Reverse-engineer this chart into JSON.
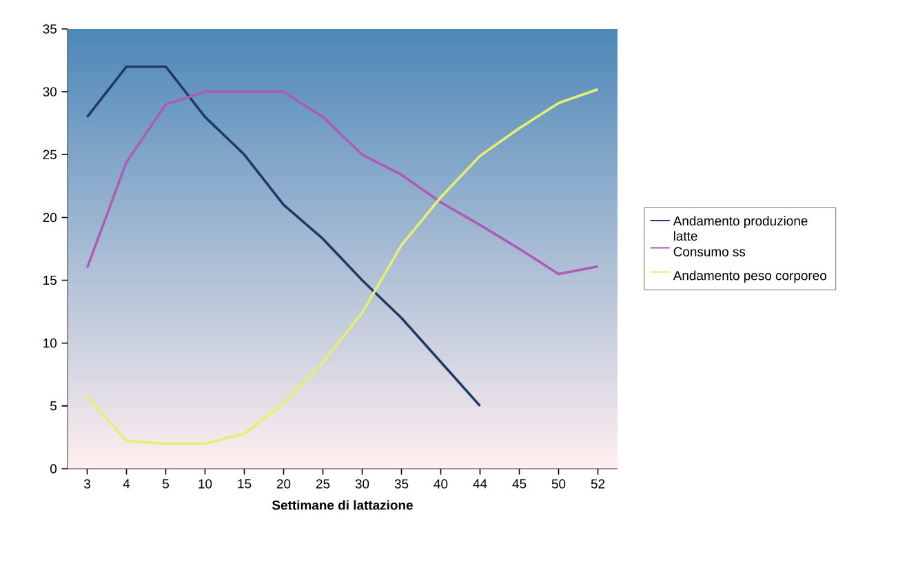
{
  "chart_data": {
    "type": "line",
    "xlabel": "Settimane di lattazione",
    "categories": [
      "3",
      "4",
      "5",
      "10",
      "15",
      "20",
      "25",
      "30",
      "35",
      "40",
      "44",
      "45",
      "50",
      "52"
    ],
    "series": [
      {
        "name": "Andamento produzione latte",
        "color": "#1f3a66",
        "values": [
          28,
          32,
          32,
          28,
          25,
          21,
          18.3,
          15,
          12,
          8.5,
          5,
          null,
          null,
          null
        ]
      },
      {
        "name": "Consumo ss",
        "color": "#b05ab8",
        "values": [
          16,
          24.4,
          29,
          30,
          30,
          30,
          28,
          25,
          23.4,
          21.2,
          19.4,
          17.5,
          15.5,
          16.1
        ]
      },
      {
        "name": "Andamento peso corporeo",
        "color": "#e8ef70",
        "values": [
          5.8,
          2.2,
          2,
          2,
          2.8,
          5.2,
          8.5,
          12.4,
          17.8,
          21.6,
          24.9,
          27.1,
          29.1,
          30.2
        ]
      }
    ],
    "ylim": [
      0,
      35
    ],
    "yticks": [
      0,
      5,
      10,
      15,
      20,
      25,
      30,
      35
    ],
    "legend": "right"
  }
}
